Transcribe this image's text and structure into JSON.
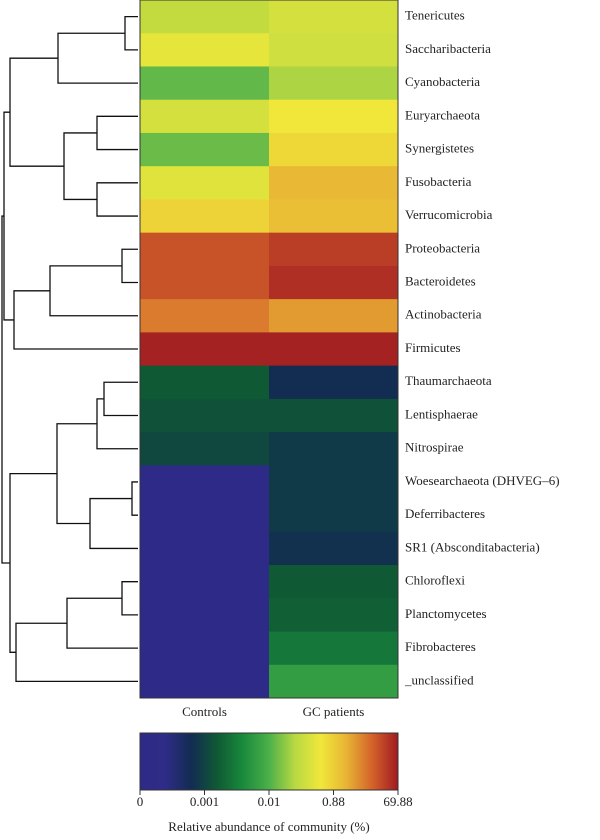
{
  "chart_data": {
    "type": "heatmap",
    "x_categories": [
      "Controls",
      "GC patients"
    ],
    "y_categories": [
      "Tenericutes",
      "Saccharibacteria",
      "Cyanobacteria",
      "Euryarchaeota",
      "Synergistetes",
      "Fusobacteria",
      "Verrucomicrobia",
      "Proteobacteria",
      "Bacteroidetes",
      "Actinobacteria",
      "Firmicutes",
      "Thaumarchaeota",
      "Lentisphaerae",
      "Nitrospirae",
      "Woesearchaeota (DHVEG–6)",
      "Deferribacteres",
      "SR1 (Absconditabacteria)",
      "Chloroflexi",
      "Planctomycetes",
      "Fibrobacteres",
      "_unclassified"
    ],
    "values": [
      [
        0.43,
        0.53
      ],
      [
        0.64,
        0.5
      ],
      [
        0.08,
        0.32
      ],
      [
        0.53,
        0.71
      ],
      [
        0.11,
        0.81
      ],
      [
        0.6,
        12
      ],
      [
        0.85,
        9.2
      ],
      [
        48,
        56
      ],
      [
        48,
        62
      ],
      [
        34,
        23
      ],
      [
        67,
        67
      ],
      [
        0.0028,
        0.0008
      ],
      [
        0.0021,
        0.0021
      ],
      [
        0.0014,
        0.00092
      ],
      [
        0,
        0.00092
      ],
      [
        0,
        0.00092
      ],
      [
        0,
        0.00084
      ],
      [
        0,
        0.0028
      ],
      [
        0,
        0.0032
      ],
      [
        0,
        0.005
      ],
      [
        0,
        0.0082
      ]
    ],
    "colorbar": {
      "label": "Relative abundance of community (%)",
      "ticks": [
        0,
        0.001,
        0.01,
        0.88,
        69.88
      ],
      "colors": [
        "#2e2a88",
        "#2e2c86",
        "#122c52",
        "#0f5a34",
        "#198a3c",
        "#4cb04a",
        "#b8d842",
        "#f0e83a",
        "#e8b434",
        "#d4622a",
        "#a01a22"
      ]
    }
  }
}
